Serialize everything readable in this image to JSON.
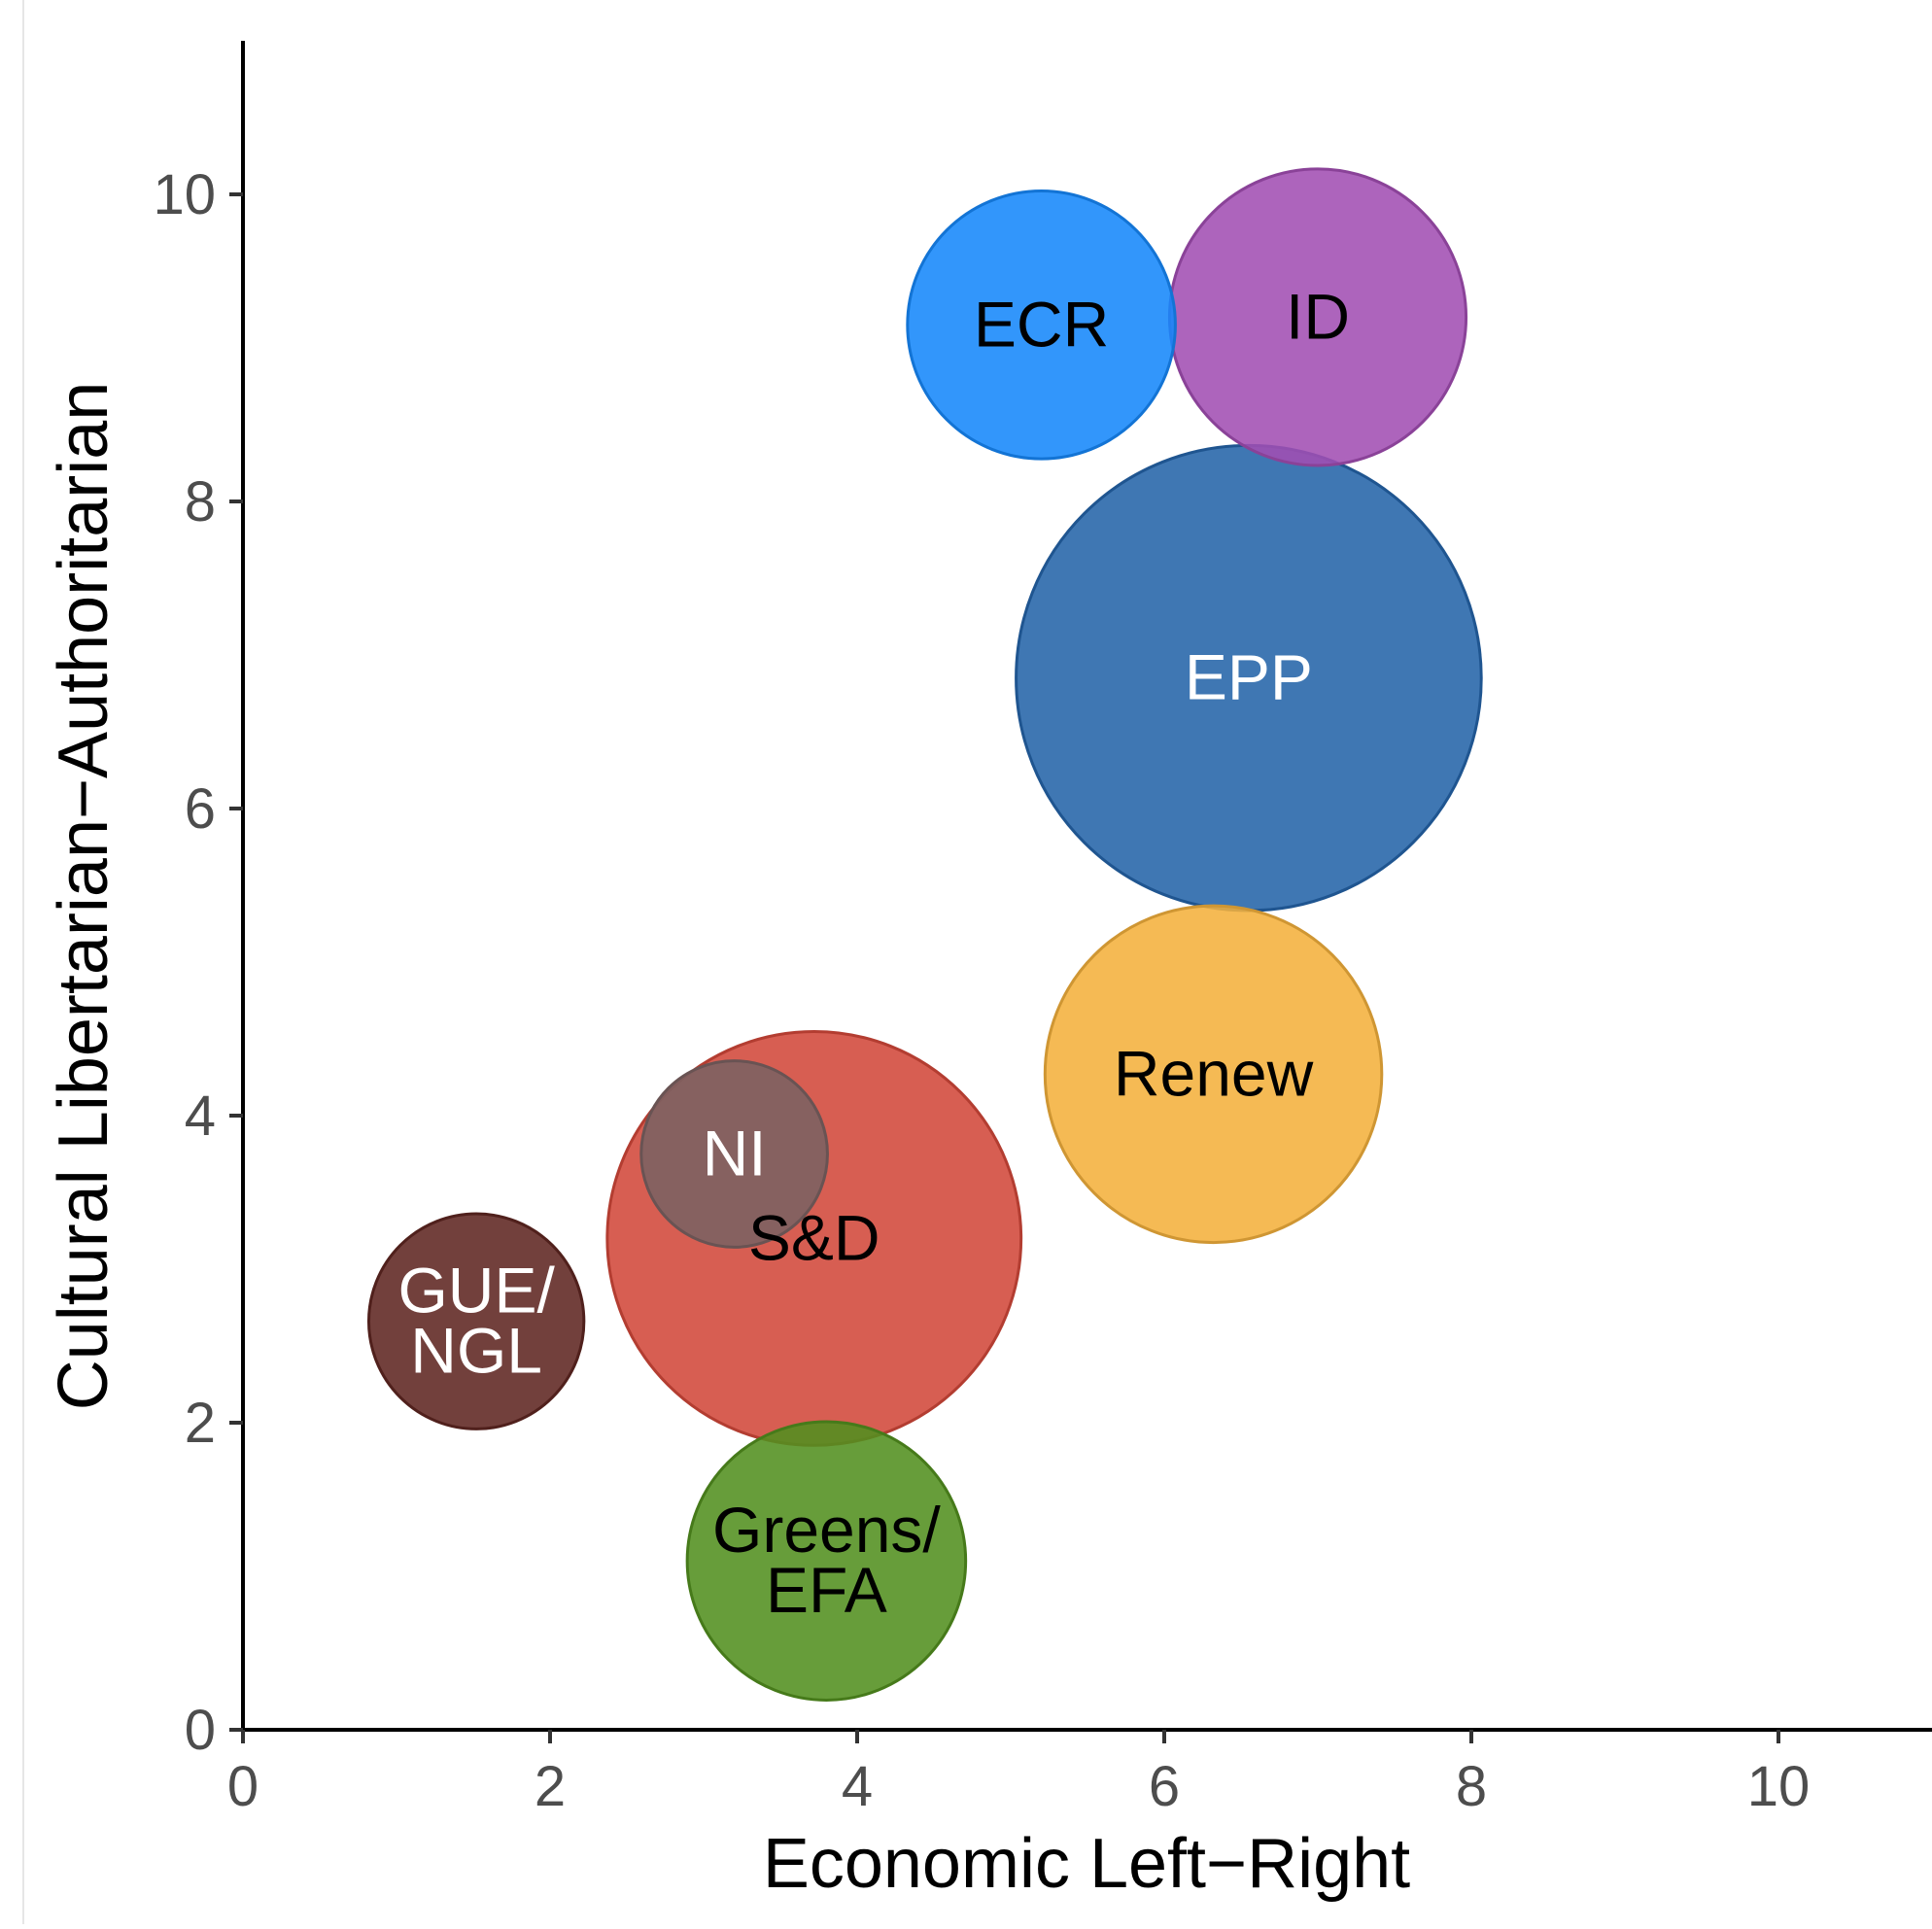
{
  "chart_data": {
    "type": "scatter",
    "xlabel": "Economic Left−Right",
    "ylabel": "Cultural Libertarian−Authoritarian",
    "xlim": [
      0,
      11
    ],
    "ylim": [
      0,
      11
    ],
    "x_ticks": [
      0,
      2,
      4,
      6,
      8,
      10
    ],
    "y_ticks": [
      0,
      2,
      4,
      6,
      8,
      10
    ],
    "grid": false,
    "points": [
      {
        "label": "S&D",
        "lines": [
          "S&D"
        ],
        "x": 3.72,
        "y": 3.2,
        "size": 148,
        "color": "#d2483a",
        "label_color": "#000000"
      },
      {
        "label": "NI",
        "lines": [
          "NI"
        ],
        "x": 3.2,
        "y": 3.75,
        "size": 30,
        "color": "#7b6262",
        "label_color": "#ffffff"
      },
      {
        "label": "GUE/NGL",
        "lines": [
          "GUE/",
          "NGL"
        ],
        "x": 1.52,
        "y": 2.66,
        "size": 40,
        "color": "#5e2621",
        "label_color": "#ffffff"
      },
      {
        "label": "Greens/EFA",
        "lines": [
          "Greens/",
          "EFA"
        ],
        "x": 3.8,
        "y": 1.1,
        "size": 67,
        "color": "#52901f",
        "label_color": "#000000"
      },
      {
        "label": "Renew",
        "lines": [
          "Renew"
        ],
        "x": 6.32,
        "y": 4.27,
        "size": 98,
        "color": "#f4b03c",
        "label_color": "#000000"
      },
      {
        "label": "EPP",
        "lines": [
          "EPP"
        ],
        "x": 6.55,
        "y": 6.85,
        "size": 187,
        "color": "#2464a9",
        "label_color": "#ffffff"
      },
      {
        "label": "ECR",
        "lines": [
          "ECR"
        ],
        "x": 5.2,
        "y": 9.15,
        "size": 62,
        "color": "#1688fa",
        "label_color": "#000000"
      },
      {
        "label": "ID",
        "lines": [
          "ID"
        ],
        "x": 7.0,
        "y": 9.2,
        "size": 76,
        "color": "#a24eb3",
        "label_color": "#000000"
      }
    ]
  }
}
